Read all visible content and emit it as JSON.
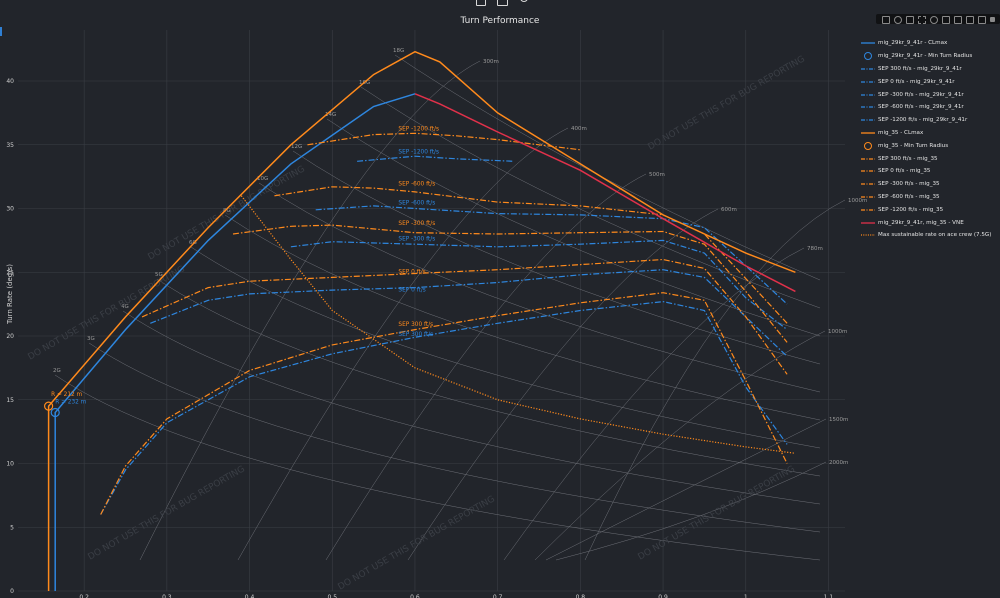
{
  "title": "Turn Performance",
  "ylabel": "Turn Rate (deg/s)",
  "watermark": "DO NOT USE THIS FOR BUG REPORTING",
  "colors": {
    "blue": "#2e86de",
    "orange": "#ff8a1c",
    "vne": "#e0314a",
    "grid": "#3a3e45",
    "bg": "#22252b"
  },
  "toolbar_icons": [
    "camera-icon",
    "zoom-icon",
    "pan-icon",
    "box-select-icon",
    "lasso-icon",
    "zoom-in-icon",
    "zoom-out-icon",
    "autoscale-icon",
    "home-icon",
    "plotly-logo-icon"
  ],
  "chart_data": {
    "type": "line",
    "xlim": [
      0.12,
      1.12
    ],
    "ylim": [
      0,
      44
    ],
    "xticks": [
      0.2,
      0.3,
      0.4,
      0.5,
      0.6,
      0.7,
      0.8,
      0.9,
      1,
      1.1
    ],
    "yticks": [
      0,
      5,
      10,
      15,
      20,
      25,
      30,
      35,
      40
    ],
    "g_labels": [
      "2G",
      "3G",
      "4G",
      "5G",
      "6G",
      "8G",
      "10G",
      "12G",
      "14G",
      "16G",
      "18G"
    ],
    "radius_labels": [
      "300m",
      "400m",
      "500m",
      "600m",
      "780m",
      "1000m",
      "1500m",
      "2000m",
      "1000m"
    ],
    "annotations": [
      {
        "text": "R = 212 m",
        "x": 0.16,
        "y": 15.3,
        "color": "#ff8a1c"
      },
      {
        "text": "R = 232 m",
        "x": 0.165,
        "y": 14.7,
        "color": "#2e86de"
      },
      {
        "text": "SEP -1200 ft/s",
        "x": 0.58,
        "y": 36.1,
        "color": "#ff8a1c"
      },
      {
        "text": "SEP -1200 ft/s",
        "x": 0.58,
        "y": 34.3,
        "color": "#2e86de"
      },
      {
        "text": "SEP -600 ft/s",
        "x": 0.58,
        "y": 31.8,
        "color": "#ff8a1c"
      },
      {
        "text": "SEP -600 ft/s",
        "x": 0.58,
        "y": 30.3,
        "color": "#2e86de"
      },
      {
        "text": "SEP -300 ft/s",
        "x": 0.58,
        "y": 28.7,
        "color": "#ff8a1c"
      },
      {
        "text": "SEP -300 ft/s",
        "x": 0.58,
        "y": 27.5,
        "color": "#2e86de"
      },
      {
        "text": "SEP 0 ft/s",
        "x": 0.58,
        "y": 24.9,
        "color": "#ff8a1c"
      },
      {
        "text": "SEP 0 ft/s",
        "x": 0.58,
        "y": 23.5,
        "color": "#2e86de"
      },
      {
        "text": "SEP 300 ft/s",
        "x": 0.58,
        "y": 20.8,
        "color": "#ff8a1c"
      },
      {
        "text": "SEP 300 ft/s",
        "x": 0.58,
        "y": 20.0,
        "color": "#2e86de"
      }
    ],
    "series": [
      {
        "name": "mig_29kr_9_41r - CLmax",
        "color": "#2e86de",
        "style": "solid",
        "x": [
          0.165,
          0.165,
          0.25,
          0.35,
          0.45,
          0.55,
          0.6
        ],
        "y": [
          0,
          14.0,
          20.5,
          27.5,
          33.5,
          38.0,
          39.0
        ]
      },
      {
        "name": "mig_29kr_9_41r - Min Turn Radius",
        "color": "#2e86de",
        "style": "marker",
        "x": [
          0.165
        ],
        "y": [
          14.0
        ]
      },
      {
        "name": "SEP 300 ft/s - mig_29kr_9_41r",
        "color": "#2e86de",
        "style": "dashdot",
        "x": [
          0.22,
          0.25,
          0.3,
          0.4,
          0.5,
          0.6,
          0.7,
          0.8,
          0.9,
          0.95,
          1.0,
          1.05
        ],
        "y": [
          6.0,
          9.5,
          13.2,
          16.8,
          18.6,
          19.9,
          21.0,
          22.0,
          22.7,
          22.0,
          16.0,
          11.5
        ]
      },
      {
        "name": "SEP 0 ft/s - mig_29kr_9_41r",
        "color": "#2e86de",
        "style": "dashdot",
        "x": [
          0.28,
          0.35,
          0.4,
          0.5,
          0.6,
          0.7,
          0.8,
          0.9,
          0.95,
          1.0,
          1.05
        ],
        "y": [
          21.0,
          22.8,
          23.3,
          23.6,
          23.8,
          24.2,
          24.8,
          25.2,
          24.6,
          21.5,
          18.4
        ]
      },
      {
        "name": "SEP -300 ft/s - mig_29kr_9_41r",
        "color": "#2e86de",
        "style": "dashdot",
        "x": [
          0.45,
          0.5,
          0.6,
          0.7,
          0.8,
          0.9,
          0.95,
          1.0,
          1.05
        ],
        "y": [
          27.0,
          27.4,
          27.2,
          27.0,
          27.2,
          27.5,
          26.5,
          23.0,
          20.5
        ]
      },
      {
        "name": "SEP -600 ft/s - mig_29kr_9_41r",
        "color": "#2e86de",
        "style": "dashdot",
        "x": [
          0.48,
          0.55,
          0.6,
          0.7,
          0.8,
          0.9,
          0.95,
          1.0,
          1.05
        ],
        "y": [
          29.9,
          30.2,
          30.0,
          29.6,
          29.5,
          29.2,
          28.5,
          25.5,
          22.5
        ]
      },
      {
        "name": "SEP -1200 ft/s - mig_29kr_9_41r",
        "color": "#2e86de",
        "style": "dashdot",
        "x": [
          0.53,
          0.6,
          0.65,
          0.72
        ],
        "y": [
          33.7,
          34.1,
          33.9,
          33.7
        ]
      },
      {
        "name": "mig_35 - CLmax",
        "color": "#ff8a1c",
        "style": "solid",
        "x": [
          0.157,
          0.157,
          0.25,
          0.35,
          0.45,
          0.55,
          0.6,
          0.63,
          0.7,
          0.8,
          0.9,
          1.0,
          1.06
        ],
        "y": [
          0,
          14.5,
          21.5,
          28.5,
          35.0,
          40.5,
          42.3,
          41.5,
          37.5,
          33.5,
          29.5,
          26.5,
          25.0
        ]
      },
      {
        "name": "mig_35 - Min Turn Radius",
        "color": "#ff8a1c",
        "style": "marker",
        "x": [
          0.157
        ],
        "y": [
          14.5
        ]
      },
      {
        "name": "SEP 300 ft/s - mig_35",
        "color": "#ff8a1c",
        "style": "dashdot",
        "x": [
          0.22,
          0.25,
          0.3,
          0.4,
          0.5,
          0.6,
          0.7,
          0.8,
          0.9,
          0.95,
          1.0,
          1.05
        ],
        "y": [
          6.0,
          9.8,
          13.5,
          17.3,
          19.3,
          20.5,
          21.6,
          22.6,
          23.4,
          22.8,
          16.5,
          10.0
        ]
      },
      {
        "name": "SEP 0 ft/s - mig_35",
        "color": "#ff8a1c",
        "style": "dashdot",
        "x": [
          0.27,
          0.35,
          0.4,
          0.5,
          0.6,
          0.7,
          0.8,
          0.9,
          0.95,
          1.0,
          1.05
        ],
        "y": [
          21.5,
          23.8,
          24.3,
          24.6,
          24.9,
          25.2,
          25.6,
          26.0,
          25.3,
          21.5,
          17.0
        ]
      },
      {
        "name": "SEP -300 ft/s - mig_35",
        "color": "#ff8a1c",
        "style": "dashdot",
        "x": [
          0.38,
          0.45,
          0.5,
          0.6,
          0.7,
          0.8,
          0.9,
          0.95,
          1.0,
          1.05
        ],
        "y": [
          28.0,
          28.6,
          28.7,
          28.1,
          28.0,
          28.1,
          28.2,
          27.2,
          23.5,
          19.5
        ]
      },
      {
        "name": "SEP -600 ft/s - mig_35",
        "color": "#ff8a1c",
        "style": "dashdot",
        "x": [
          0.43,
          0.5,
          0.55,
          0.6,
          0.7,
          0.8,
          0.9,
          0.95,
          1.0,
          1.05
        ],
        "y": [
          31.0,
          31.7,
          31.6,
          31.3,
          30.5,
          30.2,
          29.5,
          28.0,
          24.5,
          21.0
        ]
      },
      {
        "name": "SEP -1200 ft/s - mig_35",
        "color": "#ff8a1c",
        "style": "dashdot",
        "x": [
          0.47,
          0.55,
          0.6,
          0.65,
          0.7,
          0.75,
          0.8
        ],
        "y": [
          35.0,
          35.8,
          35.9,
          35.7,
          35.4,
          35.0,
          34.6
        ]
      },
      {
        "name": "mig_29kr_9_41r, mig_35 - VNE",
        "color": "#e0314a",
        "style": "solid",
        "x": [
          0.6,
          0.63,
          0.7,
          0.8,
          0.9,
          1.0,
          1.06
        ],
        "y": [
          39.0,
          38.2,
          36.0,
          33.0,
          29.2,
          25.5,
          23.5
        ]
      },
      {
        "name": "Max sustainable rate on ace crew (7.5G)",
        "color": "#ff8a1c",
        "style": "dotted",
        "x": [
          0.39,
          0.45,
          0.5,
          0.6,
          0.7,
          0.8,
          0.9,
          1.0,
          1.06
        ],
        "y": [
          31.0,
          26.0,
          22.0,
          17.5,
          15.0,
          13.5,
          12.3,
          11.3,
          10.8
        ]
      }
    ]
  }
}
